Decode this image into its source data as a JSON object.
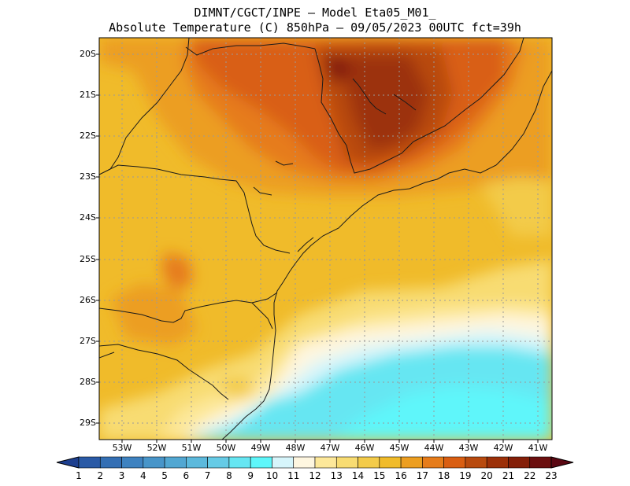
{
  "header": {
    "line1": "DIMNT/CGCT/INPE –  Model Eta05_M01_",
    "line2": "Absolute Temperature (C) 850hPa –  09/05/2023 00UTC fct=39h"
  },
  "map": {
    "lat_labels": [
      "20S",
      "21S",
      "22S",
      "23S",
      "24S",
      "25S",
      "26S",
      "27S",
      "28S",
      "29S"
    ],
    "lon_labels": [
      "53W",
      "52W",
      "51W",
      "50W",
      "49W",
      "48W",
      "47W",
      "46W",
      "45W",
      "44W",
      "43W",
      "42W",
      "41W"
    ]
  },
  "colorbar": {
    "labels": [
      "1",
      "2",
      "3",
      "4",
      "5",
      "6",
      "7",
      "8",
      "9",
      "10",
      "11",
      "12",
      "13",
      "14",
      "15",
      "16",
      "17",
      "18",
      "19",
      "20",
      "21",
      "22",
      "23"
    ],
    "colors": [
      "#1d3f8f",
      "#2a5aa6",
      "#346fb4",
      "#3e82c0",
      "#4895c9",
      "#52a7d2",
      "#5cb9dc",
      "#66cbe6",
      "#66e6f2",
      "#5ef6fa",
      "#d6f5fb",
      "#fef6e0",
      "#fde89a",
      "#f8dc72",
      "#f3cb4a",
      "#f0bb2a",
      "#ec9e20",
      "#e67c1a",
      "#d95e12",
      "#b84a0e",
      "#9c3008",
      "#841f08",
      "#6b0f0f",
      "#5a0712"
    ]
  }
}
